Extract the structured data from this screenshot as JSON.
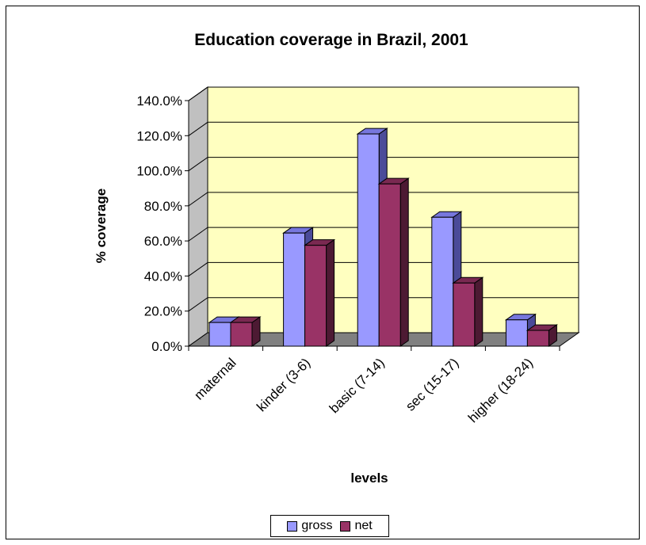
{
  "chart_data": {
    "type": "bar",
    "title": "Education coverage in Brazil, 2001",
    "xlabel": "levels",
    "ylabel": "% coverage",
    "categories": [
      "maternal",
      "kinder (3-6)",
      "basic (7-14)",
      "sec (15-17)",
      "higher (18-24)"
    ],
    "series": [
      {
        "name": "gross",
        "values": [
          13.5,
          64.5,
          121.0,
          73.5,
          15.0
        ]
      },
      {
        "name": "net",
        "values": [
          13.5,
          57.5,
          92.5,
          36.0,
          9.0
        ]
      }
    ],
    "ylim": [
      0,
      140
    ],
    "yticks": [
      "0.0%",
      "20.0%",
      "40.0%",
      "60.0%",
      "80.0%",
      "100.0%",
      "120.0%",
      "140.0%"
    ],
    "grid": true,
    "legend_position": "bottom",
    "colors": {
      "gross_face": "#9999FF",
      "gross_top": "#7777DD",
      "gross_side": "#4B4B99",
      "net_face": "#993366",
      "net_top": "#7A2951",
      "net_side": "#4D1A33",
      "plot_back": "#FFFFC0",
      "plot_floor": "#808080",
      "plot_wall": "#C0C0C0"
    }
  }
}
